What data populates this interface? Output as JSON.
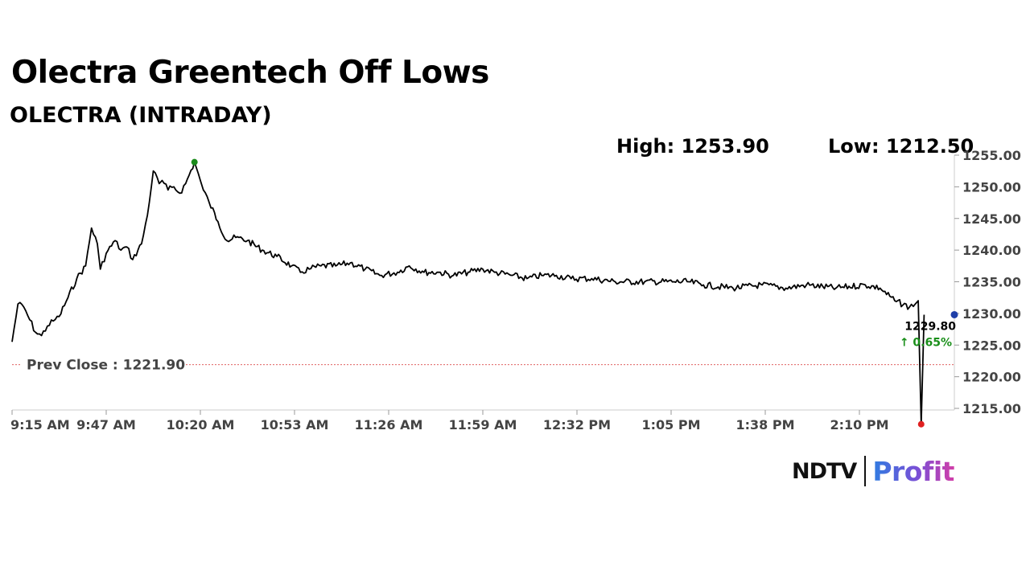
{
  "title": "Olectra Greentech Off Lows",
  "subtitle": "OLECTRA (INTRADAY)",
  "stats": {
    "high_text": "High: 1253.90",
    "low_text": "Low: 1212.50"
  },
  "brand": {
    "ndtv": "NDTV",
    "profit": "Profit"
  },
  "chart_data": {
    "type": "line",
    "title": "OLECTRA (INTRADAY)",
    "ylim": [
      1215,
      1255
    ],
    "y_ticks": [
      "1255.00",
      "1250.00",
      "1245.00",
      "1240.00",
      "1235.00",
      "1230.00",
      "1225.00",
      "1220.00",
      "1215.00"
    ],
    "x_ticks": [
      "9:15 AM",
      "9:47 AM",
      "10:20 AM",
      "10:53 AM",
      "11:26 AM",
      "11:59 AM",
      "12:32 PM",
      "1:05 PM",
      "1:38 PM",
      "2:10 PM"
    ],
    "grid": false,
    "prev_close": {
      "value": 1221.9,
      "label": "Prev Close : 1221.90",
      "color": "#e06060"
    },
    "last": {
      "value_label": "1229.80",
      "change_label": "↑ 0.65%",
      "change_color": "#1a8f1a"
    },
    "colors": {
      "line": "#000000",
      "high_marker": "#1a8a1a",
      "low_marker": "#e02020",
      "last_marker": "#1f3fa8"
    },
    "series": [
      {
        "x": [
          "9:15 AM",
          "9:17 AM",
          "9:19 AM",
          "9:21 AM",
          "9:23 AM",
          "9:25 AM",
          "9:27 AM",
          "9:29 AM",
          "9:31 AM",
          "9:34 AM",
          "9:37 AM",
          "9:40 AM",
          "9:42 AM",
          "9:44 AM",
          "9:45 AM",
          "9:47 AM",
          "9:50 AM",
          "9:52 AM",
          "9:54 AM",
          "9:56 AM",
          "9:59 AM",
          "10:01 AM",
          "10:03 AM",
          "10:05 AM",
          "10:06 AM",
          "10:08 AM",
          "10:10 AM",
          "10:12 AM",
          "10:14 AM",
          "10:17 AM",
          "10:19 AM",
          "10:20 AM",
          "10:22 AM",
          "10:25 AM",
          "10:28 AM",
          "10:31 AM",
          "10:35 AM",
          "10:40 AM",
          "10:45 AM",
          "10:50 AM",
          "10:53 AM",
          "10:56 AM",
          "11:00 AM",
          "11:05 AM",
          "11:10 AM",
          "11:15 AM",
          "11:20 AM",
          "11:26 AM",
          "11:30 AM",
          "11:35 AM",
          "11:40 AM",
          "11:45 AM",
          "11:50 AM",
          "11:55 AM",
          "11:59 AM",
          "12:05 PM",
          "12:10 PM",
          "12:15 PM",
          "12:20 PM",
          "12:25 PM",
          "12:32 PM",
          "12:40 PM",
          "12:50 PM",
          "1:00 PM",
          "1:05 PM",
          "1:10 PM",
          "1:20 PM",
          "1:30 PM",
          "1:38 PM",
          "1:45 PM",
          "1:55 PM",
          "2:05 PM",
          "2:10 PM",
          "2:15 PM",
          "2:20 PM",
          "2:22 PM",
          "2:23 PM",
          "2:24 PM",
          "2:25 PM"
        ],
        "values": [
          1225.5,
          1231.5,
          1231.0,
          1229.0,
          1227.0,
          1226.5,
          1228.0,
          1228.8,
          1229.5,
          1232.5,
          1235.5,
          1237.5,
          1243.5,
          1241.0,
          1237.0,
          1239.5,
          1241.5,
          1240.0,
          1240.5,
          1238.5,
          1241.0,
          1245.5,
          1252.5,
          1250.5,
          1251.0,
          1249.5,
          1250.0,
          1249.0,
          1250.5,
          1253.9,
          1251.0,
          1249.5,
          1247.5,
          1244.5,
          1241.5,
          1242.0,
          1241.5,
          1240.0,
          1239.0,
          1237.5,
          1236.5,
          1237.0,
          1237.5,
          1237.5,
          1238.0,
          1237.0,
          1236.0,
          1236.5,
          1237.5,
          1236.5,
          1236.5,
          1236.0,
          1236.5,
          1237.0,
          1236.5,
          1236.0,
          1235.5,
          1236.0,
          1236.0,
          1235.5,
          1235.5,
          1235.0,
          1235.0,
          1235.0,
          1235.0,
          1234.5,
          1234.0,
          1234.5,
          1234.0,
          1234.5,
          1234.0,
          1234.5,
          1234.0,
          1232.0,
          1231.0,
          1231.5,
          1232.0,
          1212.5,
          1229.8
        ]
      }
    ]
  }
}
